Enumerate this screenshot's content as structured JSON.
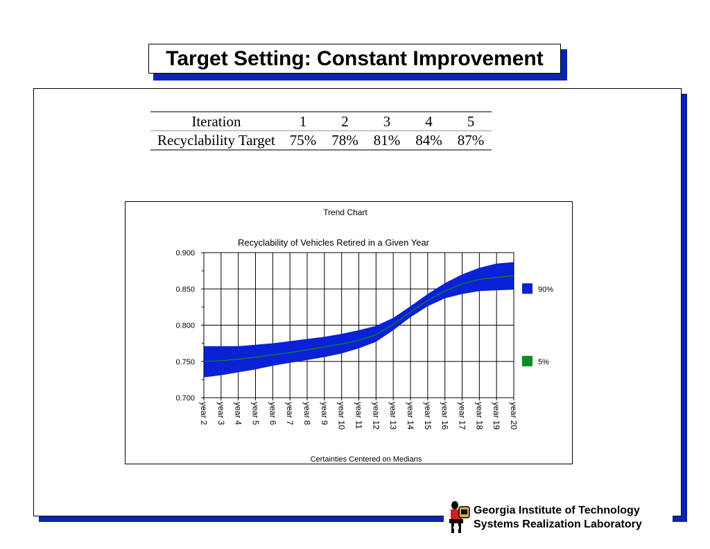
{
  "slide": {
    "title": "Target Setting:  Constant Improvement"
  },
  "table": {
    "header_label": "Iteration",
    "iterations": [
      "1",
      "2",
      "3",
      "4",
      "5"
    ],
    "row_label": "Recyclability Target",
    "targets": [
      "75%",
      "78%",
      "81%",
      "84%",
      "87%"
    ]
  },
  "chart_data": {
    "type": "area",
    "title": "Trend Chart",
    "subtitle": "Recyclability of Vehicles Retired in a Given Year",
    "footnote": "Certainties Centered on Medians",
    "categories": [
      "year 2",
      "year 3",
      "year 4",
      "year 5",
      "year 6",
      "year 7",
      "year 8",
      "year 9",
      "year 10",
      "year 11",
      "year 12",
      "year 13",
      "year 14",
      "year 15",
      "year 16",
      "year 17",
      "year 18",
      "year 19",
      "year 20"
    ],
    "ylim": [
      0.7,
      0.9
    ],
    "yticks": [
      "0.900",
      "0.850",
      "0.800",
      "0.750",
      "0.700"
    ],
    "ytick_values": [
      0.9,
      0.85,
      0.8,
      0.75,
      0.7
    ],
    "grid": true,
    "legend_position": "right",
    "band_upper": [
      0.771,
      0.771,
      0.771,
      0.773,
      0.775,
      0.778,
      0.781,
      0.784,
      0.788,
      0.793,
      0.799,
      0.81,
      0.826,
      0.843,
      0.858,
      0.87,
      0.879,
      0.885,
      0.887
    ],
    "band_lower": [
      0.728,
      0.731,
      0.735,
      0.739,
      0.744,
      0.748,
      0.752,
      0.756,
      0.761,
      0.768,
      0.777,
      0.793,
      0.811,
      0.826,
      0.837,
      0.843,
      0.847,
      0.848,
      0.849
    ],
    "median": [
      0.75,
      0.751,
      0.753,
      0.756,
      0.759,
      0.762,
      0.766,
      0.77,
      0.774,
      0.779,
      0.787,
      0.801,
      0.818,
      0.834,
      0.847,
      0.857,
      0.863,
      0.866,
      0.868
    ],
    "series": [
      {
        "name": "90%",
        "color": "#0a21d6"
      },
      {
        "name": "5%",
        "color": "#0b8a1e"
      }
    ]
  },
  "footer": {
    "line1": "Georgia Institute of Technology",
    "line2": "Systems Realization Laboratory"
  },
  "colors": {
    "accent_shadow": "#0b24b0",
    "band": "#0a21d6",
    "median": "#0b8a1e"
  }
}
